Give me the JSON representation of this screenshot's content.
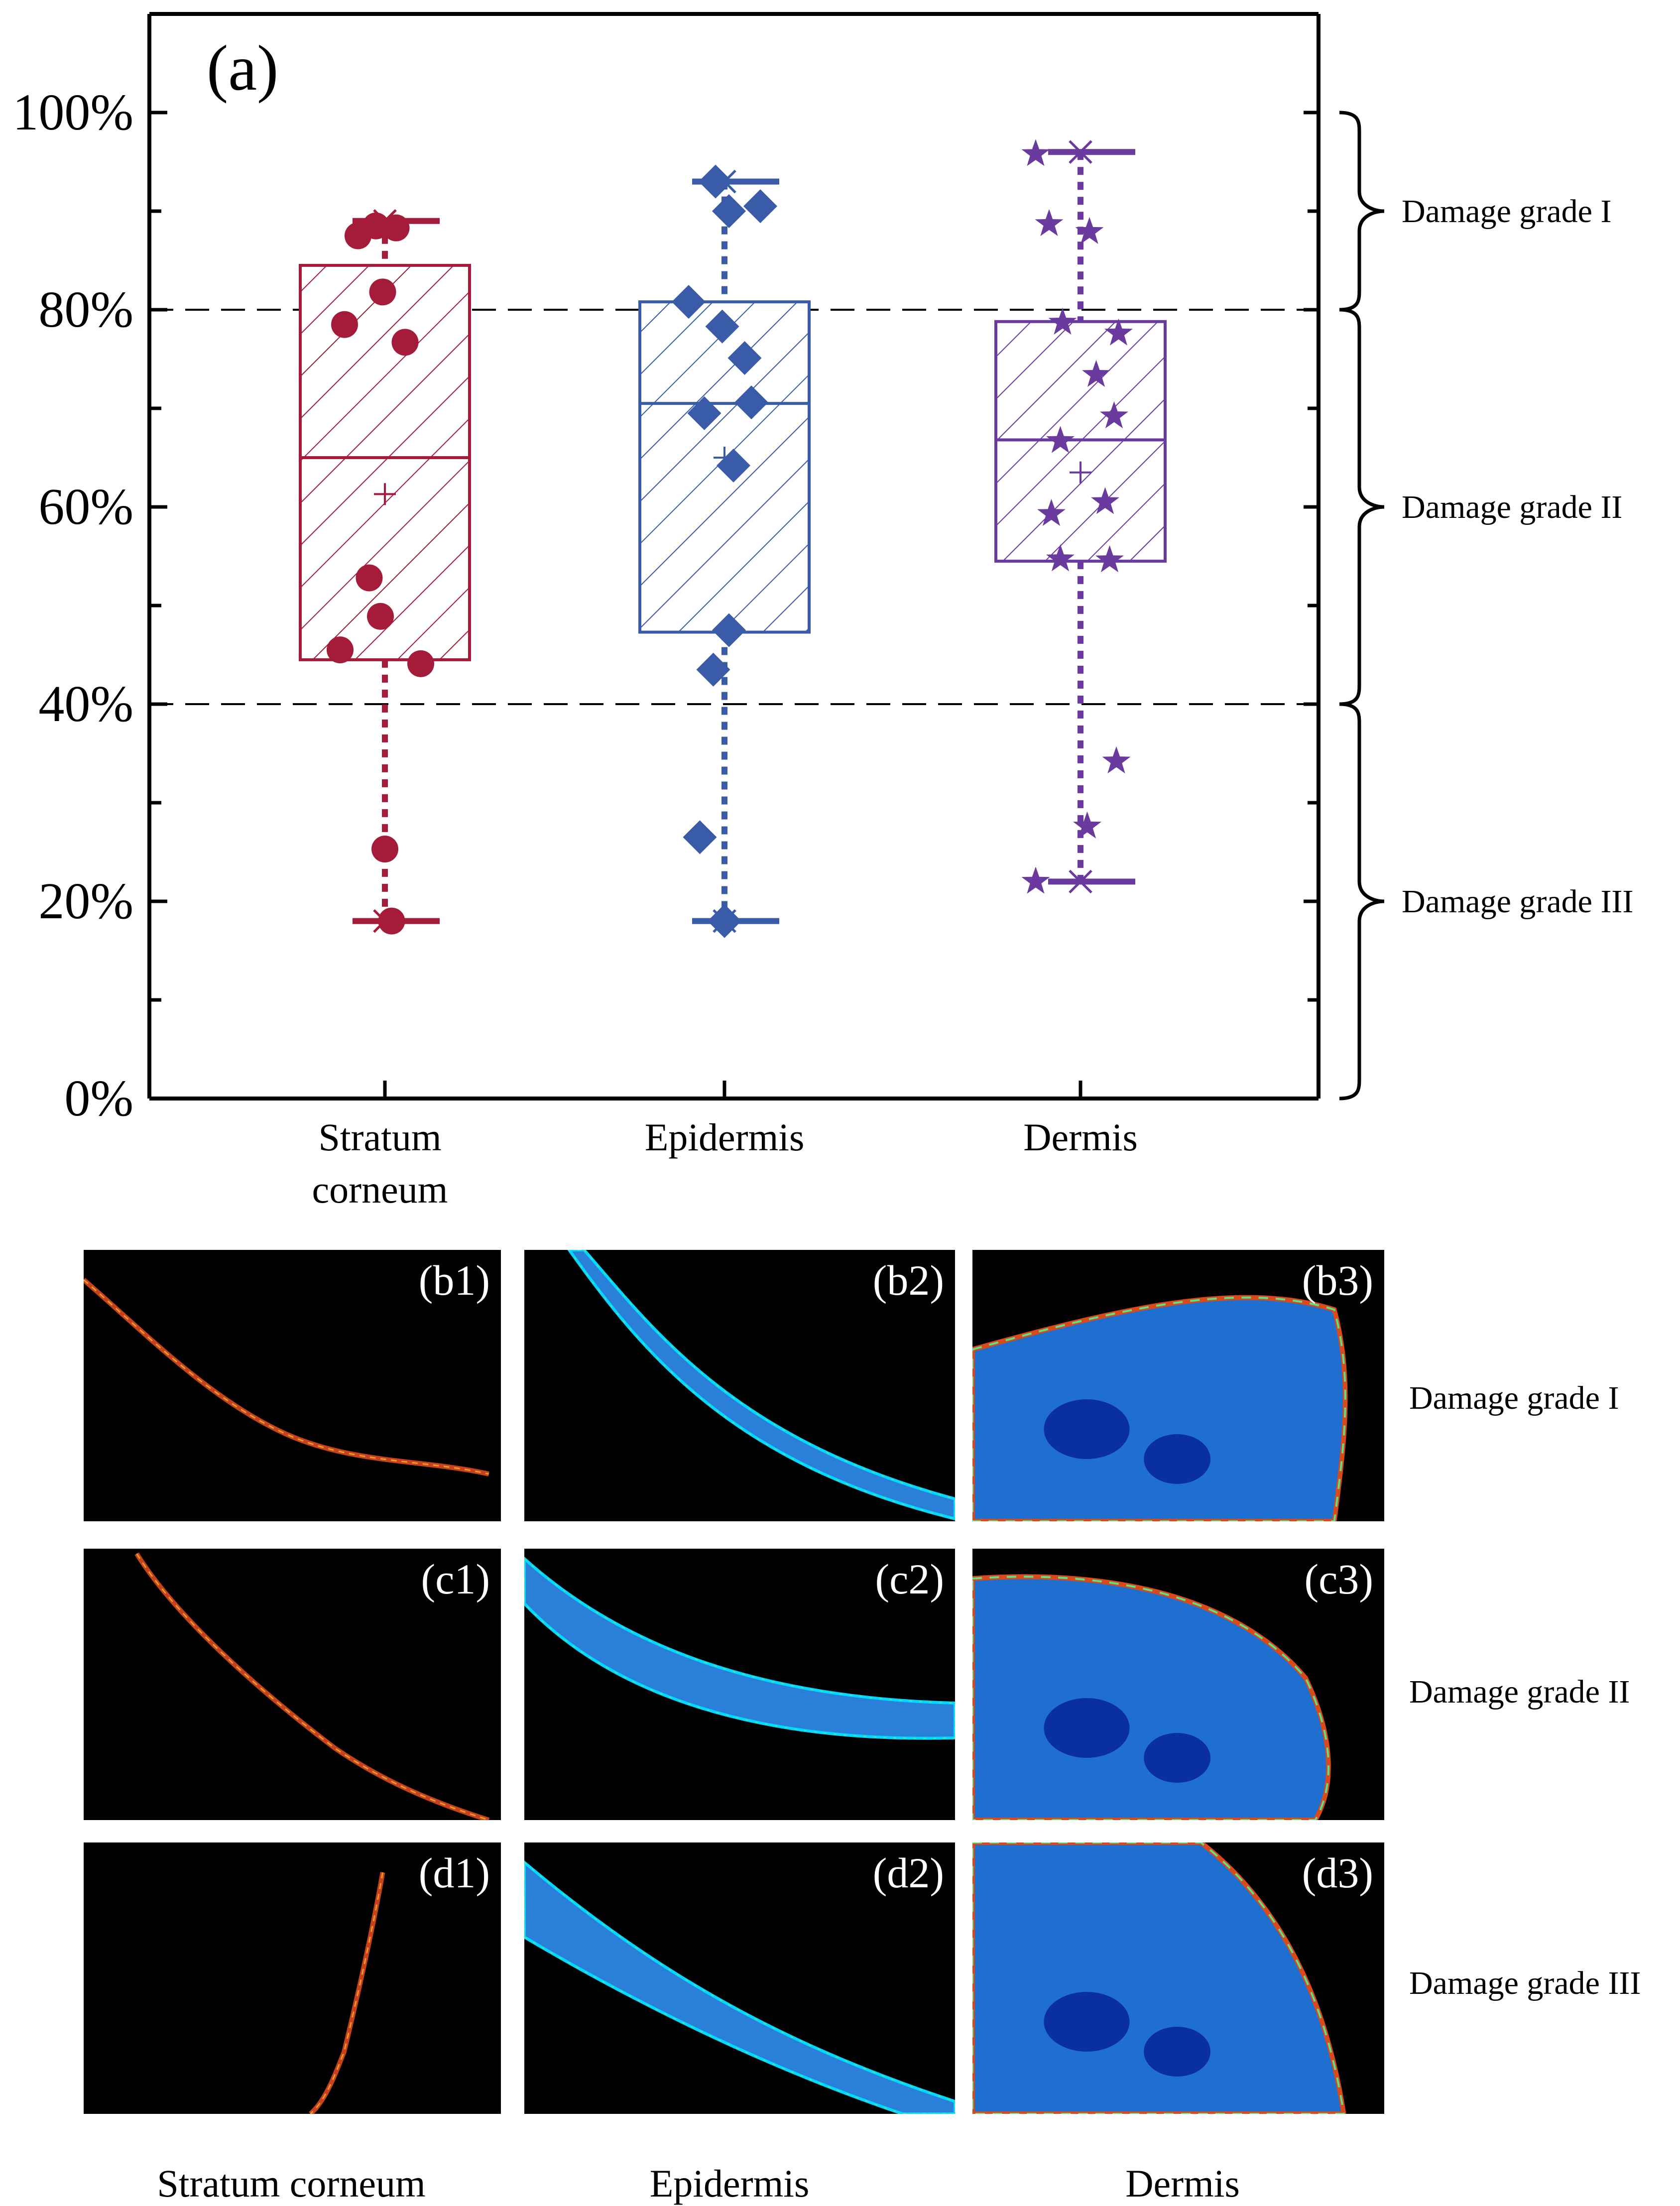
{
  "chart_data": {
    "type": "box",
    "panel_label": "(a)",
    "y_ticks": [
      "100%",
      "80%",
      "60%",
      "40%",
      "20%",
      "0%"
    ],
    "y_tick_values": [
      100,
      80,
      60,
      40,
      20,
      0
    ],
    "ylim": [
      0,
      108
    ],
    "reference_lines": [
      80,
      40
    ],
    "categories": [
      "Stratum corneum",
      "Epidermis",
      "Dermis"
    ],
    "category_lines": [
      [
        "Stratum",
        "corneum"
      ],
      [
        "Epidermis"
      ],
      [
        "Dermis"
      ]
    ],
    "series": [
      {
        "name": "Stratum corneum",
        "color": "#a51c3a",
        "marker": "circle",
        "min": 18,
        "q1": 44.5,
        "median": 65,
        "mean": 61.3,
        "q3": 84.5,
        "max": 89,
        "points": [
          {
            "x": -0.04,
            "y": 88.5
          },
          {
            "x": 0.05,
            "y": 88.3
          },
          {
            "x": -0.12,
            "y": 87.5
          },
          {
            "x": -0.01,
            "y": 81.8
          },
          {
            "x": -0.18,
            "y": 78.5
          },
          {
            "x": 0.09,
            "y": 76.7
          },
          {
            "x": -0.07,
            "y": 52.8
          },
          {
            "x": -0.02,
            "y": 48.9
          },
          {
            "x": -0.2,
            "y": 45.5
          },
          {
            "x": 0.16,
            "y": 44.1
          },
          {
            "x": 0.0,
            "y": 25.3
          },
          {
            "x": 0.03,
            "y": 18.0
          }
        ]
      },
      {
        "name": "Epidermis",
        "color": "#3a5ba8",
        "marker": "diamond",
        "min": 18,
        "q1": 47.3,
        "median": 70.5,
        "mean": 65,
        "q3": 80.8,
        "max": 93,
        "points": [
          {
            "x": -0.04,
            "y": 93.0
          },
          {
            "x": 0.02,
            "y": 90.0
          },
          {
            "x": 0.16,
            "y": 90.5
          },
          {
            "x": -0.16,
            "y": 80.8
          },
          {
            "x": -0.01,
            "y": 78.3
          },
          {
            "x": 0.09,
            "y": 75.1
          },
          {
            "x": 0.12,
            "y": 70.6
          },
          {
            "x": -0.09,
            "y": 69.5
          },
          {
            "x": 0.04,
            "y": 64.2
          },
          {
            "x": 0.02,
            "y": 47.5
          },
          {
            "x": -0.05,
            "y": 43.5
          },
          {
            "x": -0.11,
            "y": 26.5
          },
          {
            "x": 0.0,
            "y": 18.0
          }
        ]
      },
      {
        "name": "Dermis",
        "color": "#6b3a9f",
        "marker": "star",
        "min": 22,
        "q1": 54.5,
        "median": 66.8,
        "mean": 63.5,
        "q3": 78.8,
        "max": 96,
        "points": [
          {
            "x": -0.2,
            "y": 95.8
          },
          {
            "x": -0.14,
            "y": 88.7
          },
          {
            "x": 0.04,
            "y": 87.9
          },
          {
            "x": -0.08,
            "y": 78.7
          },
          {
            "x": 0.17,
            "y": 77.6
          },
          {
            "x": 0.07,
            "y": 73.4
          },
          {
            "x": 0.15,
            "y": 69.2
          },
          {
            "x": -0.09,
            "y": 66.7
          },
          {
            "x": 0.11,
            "y": 60.5
          },
          {
            "x": -0.13,
            "y": 59.3
          },
          {
            "x": -0.09,
            "y": 54.7
          },
          {
            "x": 0.13,
            "y": 54.6
          },
          {
            "x": 0.16,
            "y": 34.2
          },
          {
            "x": 0.03,
            "y": 27.6
          },
          {
            "x": -0.2,
            "y": 22.0
          }
        ]
      }
    ],
    "damage_grades": [
      {
        "label": "Damage grade I",
        "from": 80,
        "to": 100
      },
      {
        "label": "Damage grade II",
        "from": 40,
        "to": 80
      },
      {
        "label": "Damage grade III",
        "from": 0,
        "to": 40
      }
    ]
  },
  "micrographs": {
    "rows": [
      {
        "label": "Damage grade I",
        "panels": [
          "(b1)",
          "(b2)",
          "(b3)"
        ]
      },
      {
        "label": "Damage grade II",
        "panels": [
          "(c1)",
          "(c2)",
          "(c3)"
        ]
      },
      {
        "label": "Damage grade III",
        "panels": [
          "(d1)",
          "(d2)",
          "(d3)"
        ]
      }
    ],
    "columns": [
      "Stratum corneum",
      "Epidermis",
      "Dermis"
    ]
  }
}
